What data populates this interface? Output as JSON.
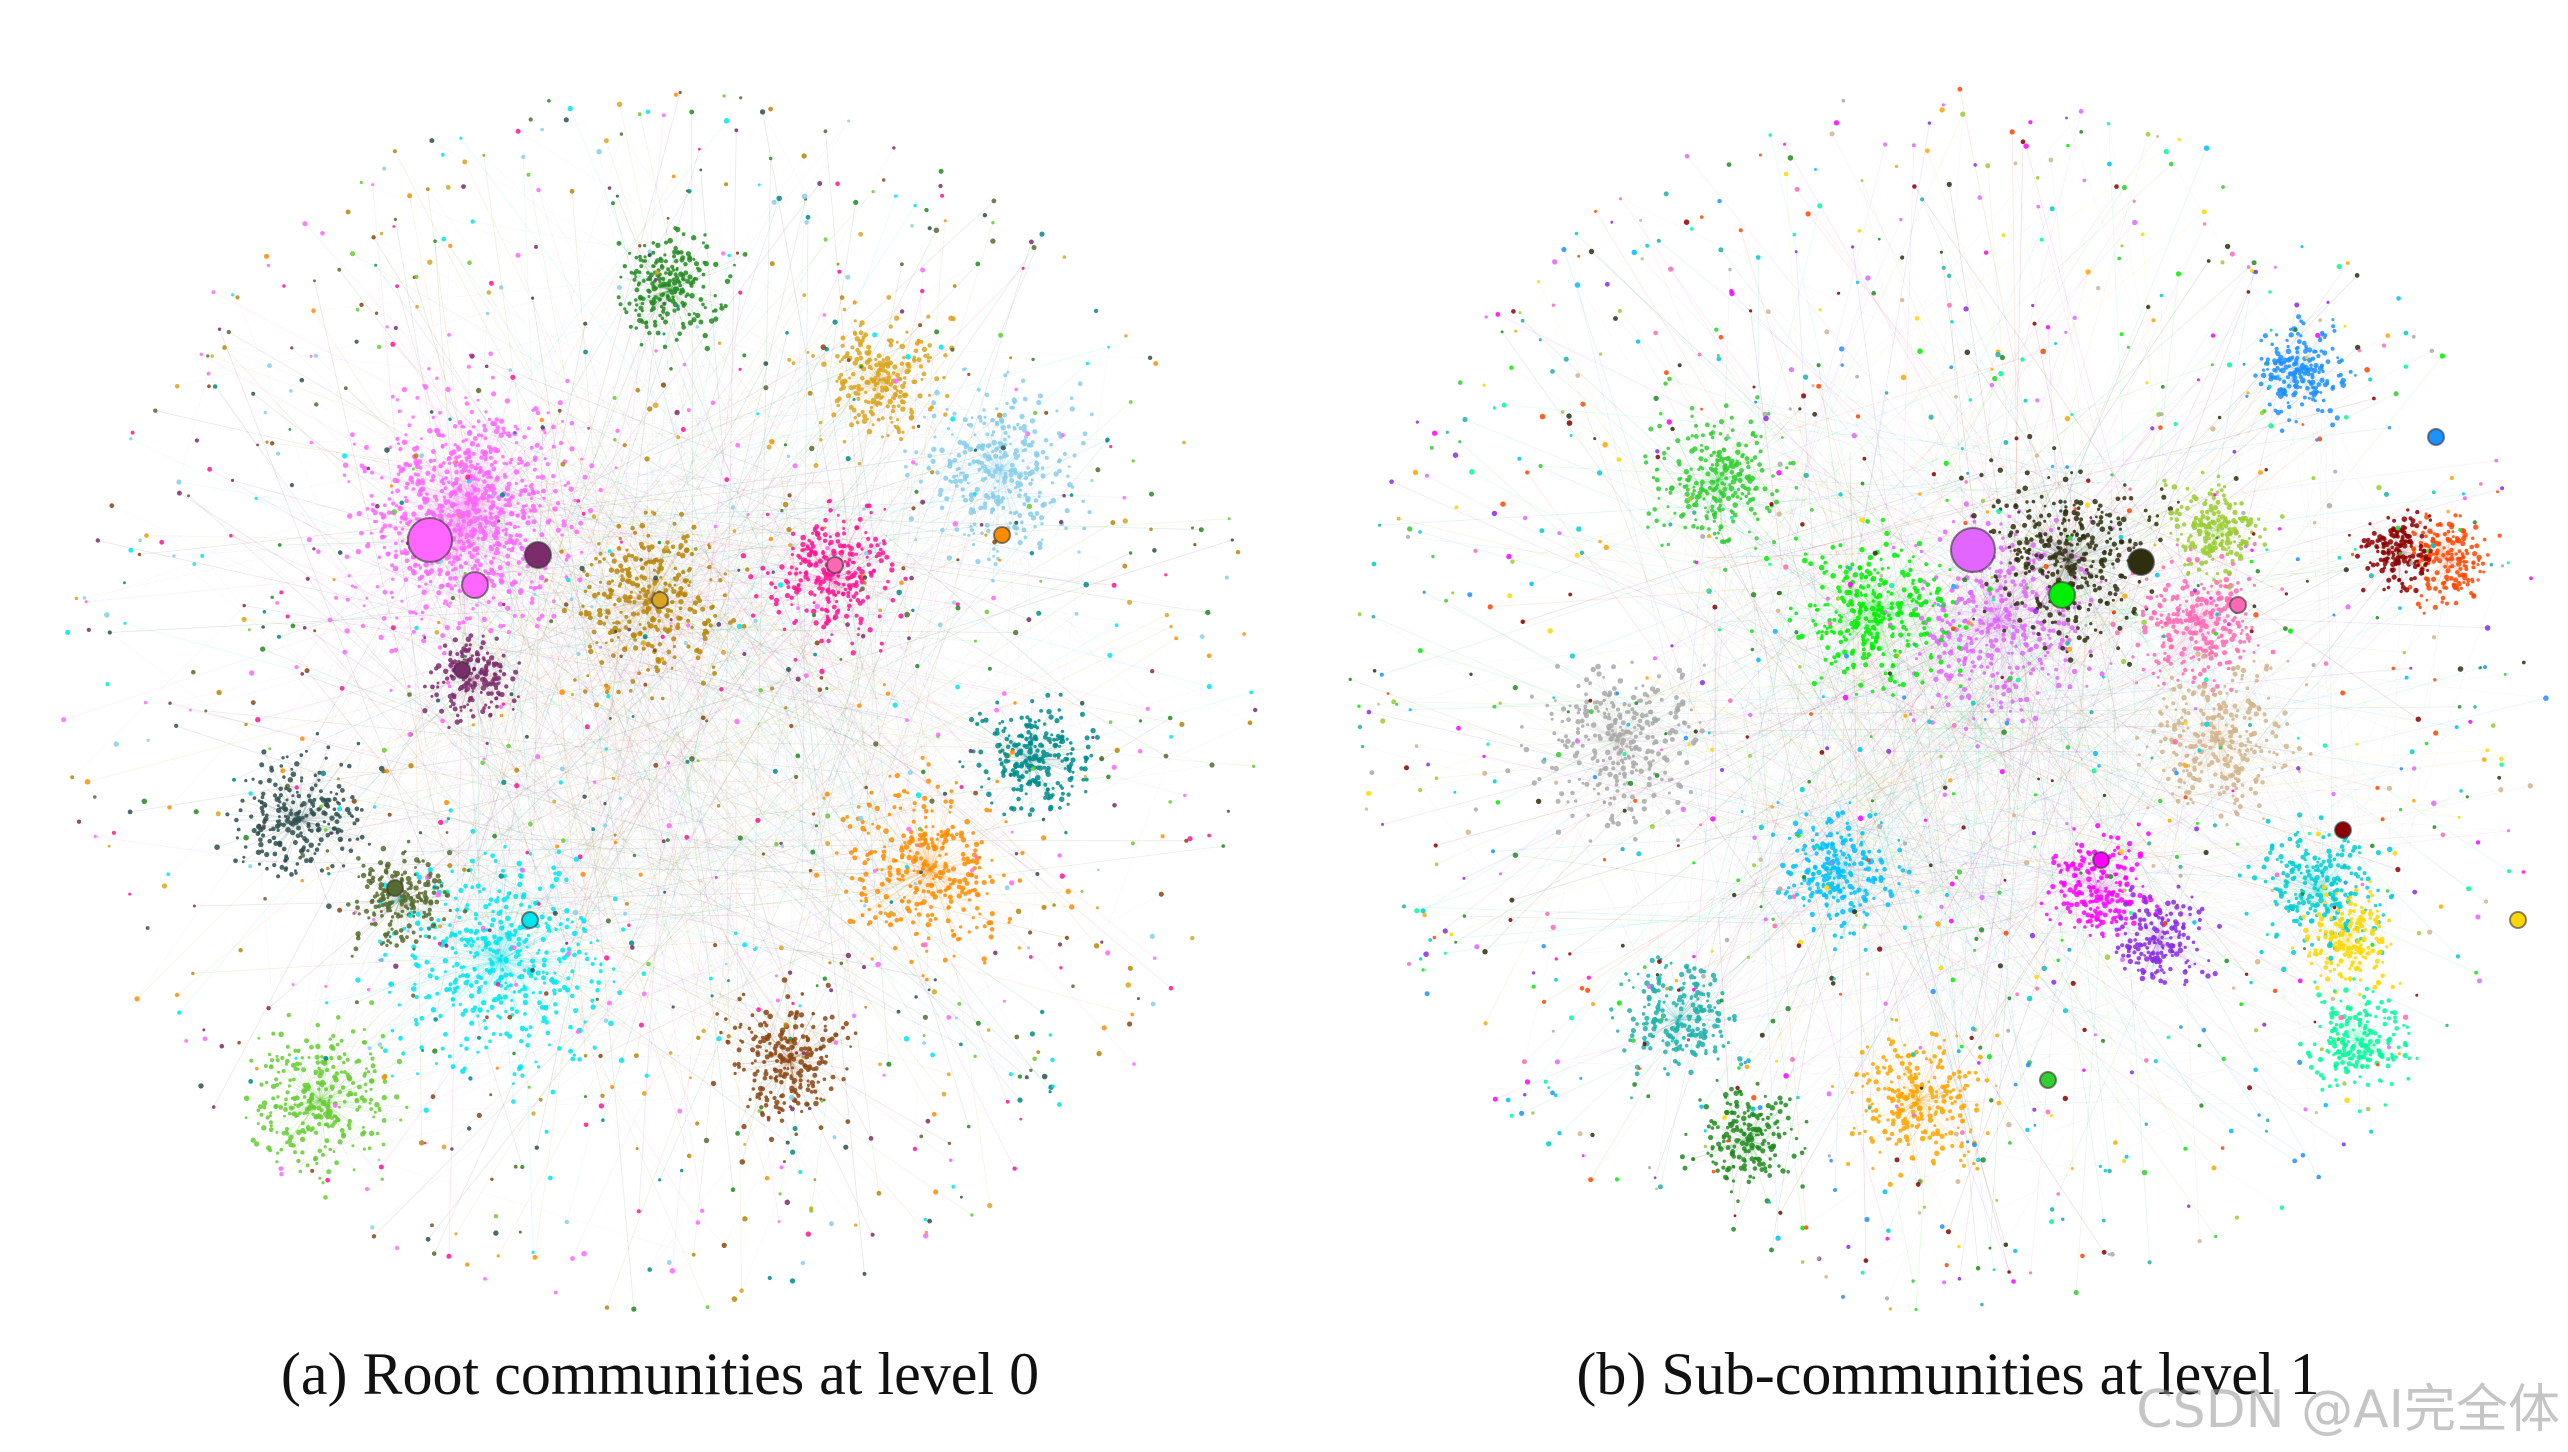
{
  "panels": [
    {
      "id": "a",
      "caption": "(a) Root communities at level 0",
      "colors": [
        "#ff66ff",
        "#ff66ff",
        "#00e5ee",
        "#ff8c00",
        "#66cc33",
        "#556b2f",
        "#8b4513",
        "#b8860b",
        "#87ceeb",
        "#ff1493",
        "#2f4f4f",
        "#7b2d6b",
        "#008b8b",
        "#daa520",
        "#228b22"
      ],
      "hubs": [
        {
          "color": "#ff66ff",
          "size": "large"
        },
        {
          "color": "#ff66ff",
          "size": "medium"
        },
        {
          "color": "#7b2d6b",
          "size": "medium"
        },
        {
          "color": "#daa520",
          "size": "small"
        },
        {
          "color": "#ff69b4",
          "size": "small"
        },
        {
          "color": "#ff8c00",
          "size": "small"
        },
        {
          "color": "#00e5ee",
          "size": "small"
        },
        {
          "color": "#556b2f",
          "size": "small"
        },
        {
          "color": "#7b2d6b",
          "size": "small"
        }
      ]
    },
    {
      "id": "b",
      "caption": "(b) Sub-communities at level 1",
      "colors": [
        "#e066ff",
        "#00ee00",
        "#2f2f10",
        "#ff69b4",
        "#1e90ff",
        "#00ced1",
        "#ffd700",
        "#ff4500",
        "#8b0000",
        "#32cd32",
        "#00bfff",
        "#ff00ff",
        "#9acd32",
        "#a9a9a9",
        "#ffa500",
        "#8a2be2",
        "#00fa9a",
        "#20b2aa",
        "#d2b48c",
        "#228b22"
      ],
      "hubs": [
        {
          "color": "#e066ff",
          "size": "large"
        },
        {
          "color": "#00ee00",
          "size": "medium"
        },
        {
          "color": "#2f2f10",
          "size": "medium"
        },
        {
          "color": "#ff69b4",
          "size": "small"
        },
        {
          "color": "#1e90ff",
          "size": "small"
        },
        {
          "color": "#8b0000",
          "size": "small"
        },
        {
          "color": "#ff00ff",
          "size": "small"
        },
        {
          "color": "#ffd700",
          "size": "small"
        },
        {
          "color": "#32cd32",
          "size": "small"
        }
      ]
    }
  ],
  "watermark": "CSDN @AI完全体"
}
